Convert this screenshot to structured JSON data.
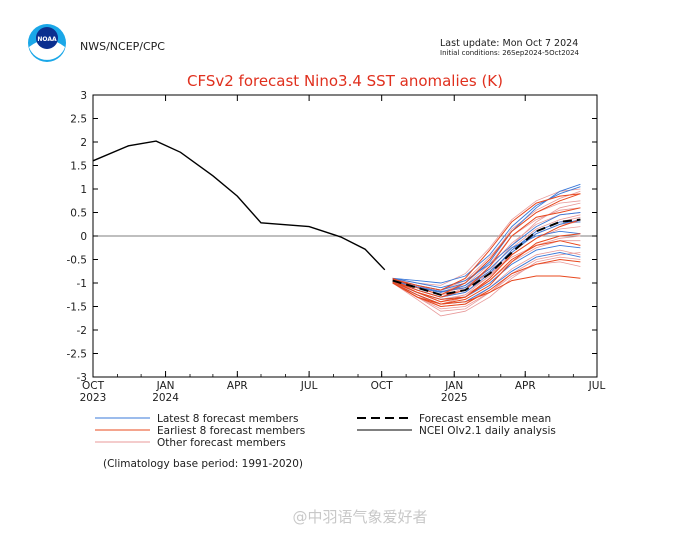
{
  "header": {
    "logo_text": "NOAA",
    "agency": "NWS/NCEP/CPC",
    "last_update": "Last update: Mon Oct 7 2024",
    "initial_conditions": "Initial conditions: 26Sep2024-5Oct2024"
  },
  "watermark": "@中羽语气象爱好者",
  "chart_data": {
    "type": "line",
    "title": "CFSv2 forecast Nino3.4 SST anomalies (K)",
    "xlabel": "",
    "ylabel": "",
    "ylim": [
      -3,
      3
    ],
    "yticks": [
      "3",
      "2.5",
      "2",
      "1.5",
      "1",
      "0.5",
      "0",
      "-0.5",
      "-1",
      "-1.5",
      "-2",
      "-2.5",
      "-3"
    ],
    "xlim": [
      "2023-10-01",
      "2025-07-01"
    ],
    "xticks": [
      {
        "month": "OCT",
        "year": "2023",
        "date": "2023-10-01"
      },
      {
        "month": "JAN",
        "year": "2024",
        "date": "2024-01-01"
      },
      {
        "month": "APR",
        "year": "",
        "date": "2024-04-01"
      },
      {
        "month": "JUL",
        "year": "",
        "date": "2024-07-01"
      },
      {
        "month": "OCT",
        "year": "",
        "date": "2024-10-01"
      },
      {
        "month": "JAN",
        "year": "2025",
        "date": "2025-01-01"
      },
      {
        "month": "APR",
        "year": "",
        "date": "2025-04-01"
      },
      {
        "month": "JUL",
        "year": "",
        "date": "2025-07-01"
      }
    ],
    "zero_line": true,
    "grid": false,
    "colors": {
      "title": "#e0301e",
      "latest": "#3a78d8",
      "earliest": "#e8481e",
      "other": "#e89a9a",
      "mean": "#000000",
      "analysis": "#000000"
    },
    "legend": [
      {
        "label": "Latest 8 forecast members",
        "key": "latest"
      },
      {
        "label": "Earliest 8 forecast members",
        "key": "earliest"
      },
      {
        "label": "Other forecast members",
        "key": "other"
      },
      {
        "label": "Forecast ensemble mean",
        "key": "mean"
      },
      {
        "label": "NCEI OIv2.1 daily analysis",
        "key": "analysis"
      }
    ],
    "climatology_note": "(Climatology base period: 1991-2020)",
    "analysis": {
      "x": [
        "2023-10-01",
        "2023-11-15",
        "2023-12-20",
        "2024-01-20",
        "2024-03-01",
        "2024-04-01",
        "2024-05-01",
        "2024-07-01",
        "2024-08-10",
        "2024-09-10",
        "2024-10-05"
      ],
      "y": [
        1.6,
        1.92,
        2.02,
        1.78,
        1.28,
        0.85,
        0.28,
        0.2,
        -0.02,
        -0.28,
        -0.72
      ]
    },
    "forecast_x": [
      "2024-10-15",
      "2024-11-15",
      "2024-12-15",
      "2025-01-15",
      "2025-02-15",
      "2025-03-15",
      "2025-04-15",
      "2025-05-15",
      "2025-06-10"
    ],
    "ensemble_mean": [
      -0.95,
      -1.1,
      -1.25,
      -1.15,
      -0.8,
      -0.35,
      0.1,
      0.3,
      0.35
    ],
    "latest_members": [
      [
        -0.9,
        -1.0,
        -1.1,
        -0.95,
        -0.6,
        -0.2,
        0.2,
        0.45,
        0.5
      ],
      [
        -0.95,
        -1.15,
        -1.3,
        -1.2,
        -0.8,
        -0.3,
        0.1,
        0.3,
        0.3
      ],
      [
        -0.92,
        -1.05,
        -1.15,
        -1.0,
        -0.55,
        0.1,
        0.6,
        0.95,
        1.1
      ],
      [
        -0.98,
        -1.2,
        -1.35,
        -1.3,
        -1.0,
        -0.6,
        -0.3,
        -0.2,
        -0.25
      ],
      [
        -0.9,
        -0.95,
        -1.0,
        -0.85,
        -0.4,
        0.2,
        0.65,
        0.9,
        1.05
      ],
      [
        -0.95,
        -1.1,
        -1.2,
        -1.05,
        -0.7,
        -0.25,
        0.0,
        0.1,
        0.05
      ],
      [
        -1.0,
        -1.25,
        -1.45,
        -1.4,
        -1.1,
        -0.75,
        -0.45,
        -0.35,
        -0.45
      ],
      [
        -0.93,
        -1.08,
        -1.18,
        -1.1,
        -0.75,
        -0.35,
        0.05,
        0.25,
        0.35
      ]
    ],
    "earliest_members": [
      [
        -0.95,
        -1.2,
        -1.4,
        -1.3,
        -0.9,
        -0.4,
        -0.05,
        0.2,
        0.35
      ],
      [
        -0.9,
        -1.1,
        -1.25,
        -1.0,
        -0.5,
        0.1,
        0.5,
        0.75,
        0.9
      ],
      [
        -1.0,
        -1.3,
        -1.5,
        -1.45,
        -1.15,
        -0.8,
        -0.6,
        -0.5,
        -0.55
      ],
      [
        -0.95,
        -1.15,
        -1.3,
        -1.15,
        -0.65,
        0.0,
        0.4,
        0.5,
        0.6
      ],
      [
        -1.0,
        -1.25,
        -1.45,
        -1.35,
        -1.05,
        -0.55,
        -0.15,
        0.0,
        0.05
      ],
      [
        -0.92,
        -1.05,
        -1.15,
        -0.9,
        -0.3,
        0.3,
        0.7,
        0.85,
        0.9
      ],
      [
        -0.98,
        -1.2,
        -1.35,
        -1.3,
        -0.95,
        -0.5,
        -0.2,
        -0.1,
        -0.2
      ],
      [
        -1.0,
        -1.3,
        -1.45,
        -1.4,
        -1.2,
        -0.95,
        -0.85,
        -0.85,
        -0.9
      ]
    ],
    "other_members": [
      [
        -0.9,
        -1.05,
        -1.2,
        -1.0,
        -0.5,
        0.15,
        0.55,
        0.8,
        0.95
      ],
      [
        -0.95,
        -1.15,
        -1.3,
        -1.2,
        -0.85,
        -0.4,
        -0.05,
        0.15,
        0.2
      ],
      [
        -1.0,
        -1.3,
        -1.6,
        -1.55,
        -1.2,
        -0.8,
        -0.5,
        -0.4,
        -0.35
      ],
      [
        -0.92,
        -1.1,
        -1.25,
        -1.05,
        -0.6,
        0.0,
        0.35,
        0.55,
        0.6
      ],
      [
        -0.97,
        -1.2,
        -1.4,
        -1.25,
        -0.85,
        -0.3,
        0.1,
        0.3,
        0.4
      ],
      [
        -0.9,
        -1.0,
        -1.05,
        -0.8,
        -0.25,
        0.35,
        0.75,
        0.95,
        1.0
      ],
      [
        -1.0,
        -1.25,
        -1.5,
        -1.45,
        -1.1,
        -0.7,
        -0.4,
        -0.3,
        -0.4
      ],
      [
        -0.95,
        -1.1,
        -1.2,
        -1.1,
        -0.7,
        -0.25,
        0.15,
        0.35,
        0.45
      ],
      [
        -0.98,
        -1.2,
        -1.35,
        -1.25,
        -0.95,
        -0.55,
        -0.25,
        -0.1,
        -0.1
      ],
      [
        -0.93,
        -1.05,
        -1.15,
        -0.95,
        -0.45,
        0.1,
        0.5,
        0.7,
        0.75
      ],
      [
        -1.0,
        -1.35,
        -1.7,
        -1.6,
        -1.3,
        -0.9,
        -0.55,
        -0.45,
        -0.5
      ],
      [
        -0.95,
        -1.15,
        -1.3,
        -1.1,
        -0.65,
        -0.15,
        0.25,
        0.45,
        0.5
      ],
      [
        -0.9,
        -1.05,
        -1.2,
        -1.1,
        -0.8,
        -0.45,
        -0.2,
        -0.05,
        0.0
      ],
      [
        -0.97,
        -1.25,
        -1.45,
        -1.3,
        -0.9,
        -0.35,
        0.05,
        0.25,
        0.3
      ],
      [
        -0.95,
        -1.1,
        -1.25,
        -1.15,
        -0.75,
        -0.2,
        0.3,
        0.6,
        0.7
      ],
      [
        -1.0,
        -1.3,
        -1.55,
        -1.5,
        -1.2,
        -0.85,
        -0.6,
        -0.55,
        -0.65
      ]
    ]
  }
}
